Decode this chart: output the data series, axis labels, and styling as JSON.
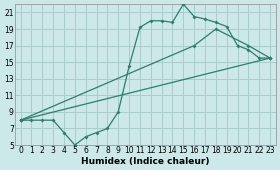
{
  "xlabel": "Humidex (Indice chaleur)",
  "bg_color": "#cce8e8",
  "grid_color": "#aacccc",
  "line_color": "#2e7d6e",
  "xlim": [
    -0.5,
    23.5
  ],
  "ylim": [
    5,
    22
  ],
  "xticks": [
    0,
    1,
    2,
    3,
    4,
    5,
    6,
    7,
    8,
    9,
    10,
    11,
    12,
    13,
    14,
    15,
    16,
    17,
    18,
    19,
    20,
    21,
    22,
    23
  ],
  "yticks": [
    5,
    7,
    9,
    11,
    13,
    15,
    17,
    19,
    21
  ],
  "line1_x": [
    0,
    1,
    2,
    3,
    4,
    5,
    6,
    7,
    8,
    9,
    10,
    11,
    12,
    13,
    14,
    15,
    16,
    17,
    18,
    19,
    20,
    21,
    22,
    23
  ],
  "line1_y": [
    8,
    8,
    8,
    8,
    6.5,
    5,
    6,
    6.5,
    7,
    9,
    14.5,
    19.2,
    20,
    20,
    19.8,
    22,
    20.5,
    20.2,
    19.8,
    19.3,
    17,
    16.5,
    15.5,
    15.5
  ],
  "line2_x": [
    0,
    16,
    18,
    21,
    23
  ],
  "line2_y": [
    8,
    17,
    19,
    17,
    15.5
  ],
  "line3_x": [
    0,
    23
  ],
  "line3_y": [
    8,
    15.5
  ],
  "markersize": 2.0,
  "linewidth": 0.9,
  "xlabel_fontsize": 6.5,
  "tick_fontsize": 5.5
}
